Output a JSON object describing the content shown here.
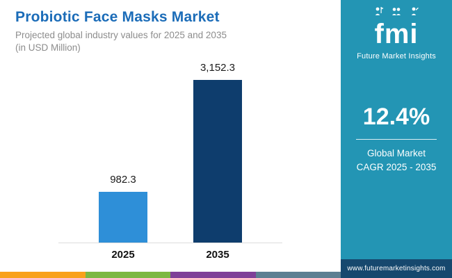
{
  "header": {
    "title": "Probiotic Face Masks Market",
    "subtitle_line1": "Projected global industry values for 2025 and 2035",
    "subtitle_line2": "(in USD Million)"
  },
  "chart_data": {
    "type": "bar",
    "title": "Probiotic Face Masks Market",
    "subtitle": "Projected global industry values for 2025 and 2035 (in USD Million)",
    "categories": [
      "2025",
      "2035"
    ],
    "values": [
      982.3,
      3152.3
    ],
    "value_labels": [
      "982.3",
      "3,152.3"
    ],
    "unit": "USD Million",
    "ylim": [
      0,
      3400
    ],
    "bar_colors": [
      "#2e8fd8",
      "#0e3d6d"
    ],
    "grid": false,
    "legend": false
  },
  "sidebar": {
    "logo_text": "fmi",
    "brand": "Future Market Insights",
    "cagr_value": "12.4%",
    "cagr_label_line1": "Global Market",
    "cagr_label_line2": "CAGR 2025 - 2035",
    "website": "www.futuremarketinsights.com",
    "bg_color": "#2395b4",
    "footer_color": "#16486e"
  },
  "footer_strip": {
    "colors": [
      "#f9a11b",
      "#7cb842",
      "#7f3f98",
      "#5c7f92"
    ]
  }
}
